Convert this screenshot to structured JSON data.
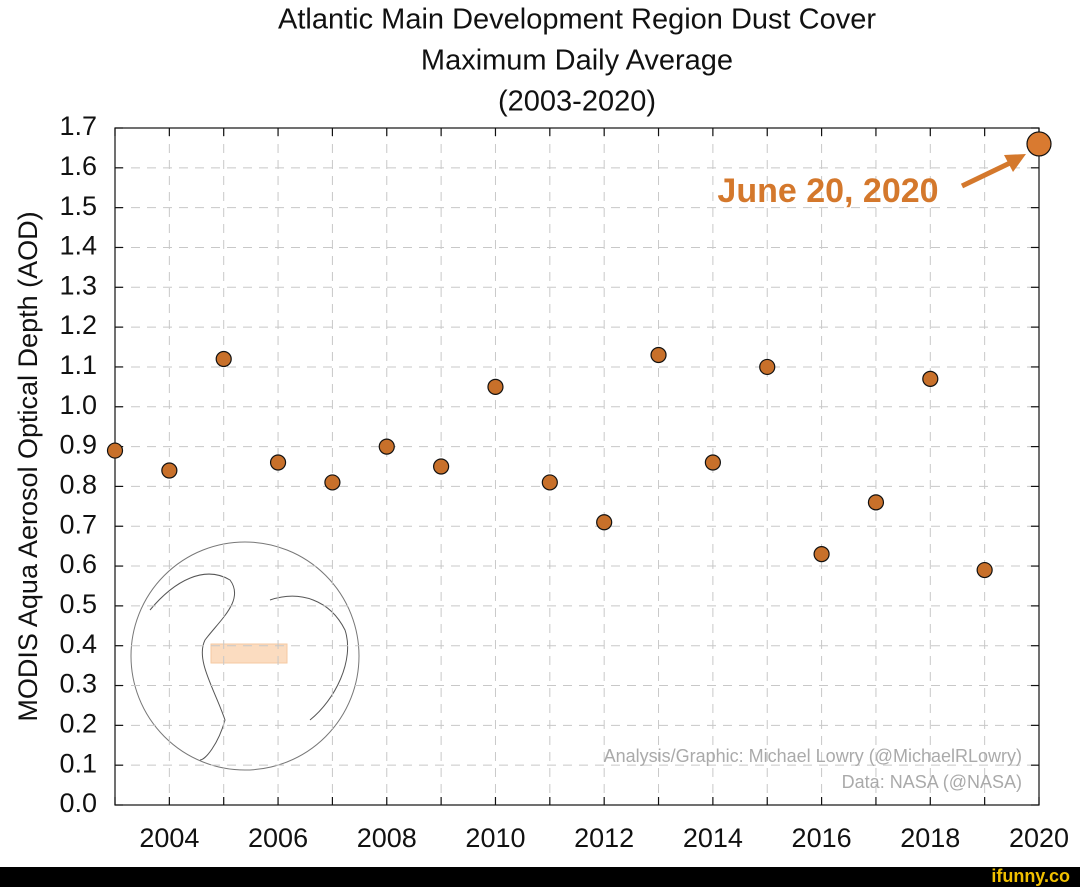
{
  "chart_data": {
    "type": "scatter",
    "title": [
      "Atlantic Main Development Region Dust Cover",
      "Maximum Daily Average",
      "(2003-2020)"
    ],
    "y_label": "MODIS Aqua Aerosol Optical Depth (AOD)",
    "x": [
      2003,
      2004,
      2005,
      2006,
      2007,
      2008,
      2009,
      2010,
      2011,
      2012,
      2013,
      2014,
      2015,
      2016,
      2017,
      2018,
      2019,
      2020
    ],
    "values": [
      0.89,
      0.84,
      1.12,
      0.86,
      0.81,
      0.9,
      0.85,
      1.05,
      0.81,
      0.71,
      1.13,
      0.86,
      1.1,
      0.63,
      0.76,
      1.07,
      0.59,
      1.66
    ],
    "color": "#c8702a",
    "highlight_color": "#d97a30",
    "xlim": [
      2003,
      2020
    ],
    "xticks": [
      2004,
      2006,
      2008,
      2010,
      2012,
      2014,
      2016,
      2018,
      2020
    ],
    "x_minor_ticks": [
      2003,
      2005,
      2007,
      2009,
      2011,
      2013,
      2015,
      2017,
      2019
    ],
    "ylim": [
      0,
      1.7
    ],
    "yticks": [
      {
        "value": 0,
        "label": "0.0"
      },
      0.1,
      0.2,
      0.3,
      0.4,
      0.5,
      0.6,
      0.7,
      0.8,
      0.9,
      {
        "value": 1,
        "label": "1.0"
      },
      1.1,
      1.2,
      1.3,
      1.4,
      1.5,
      1.6,
      1.7
    ],
    "grid": true,
    "annotation": "June 20, 2020",
    "credits": [
      "Analysis/Graphic: Michael Lowry (@MichaelRLowry)",
      "Data: NASA (@NASA)"
    ]
  },
  "watermark": "ifunny.co"
}
